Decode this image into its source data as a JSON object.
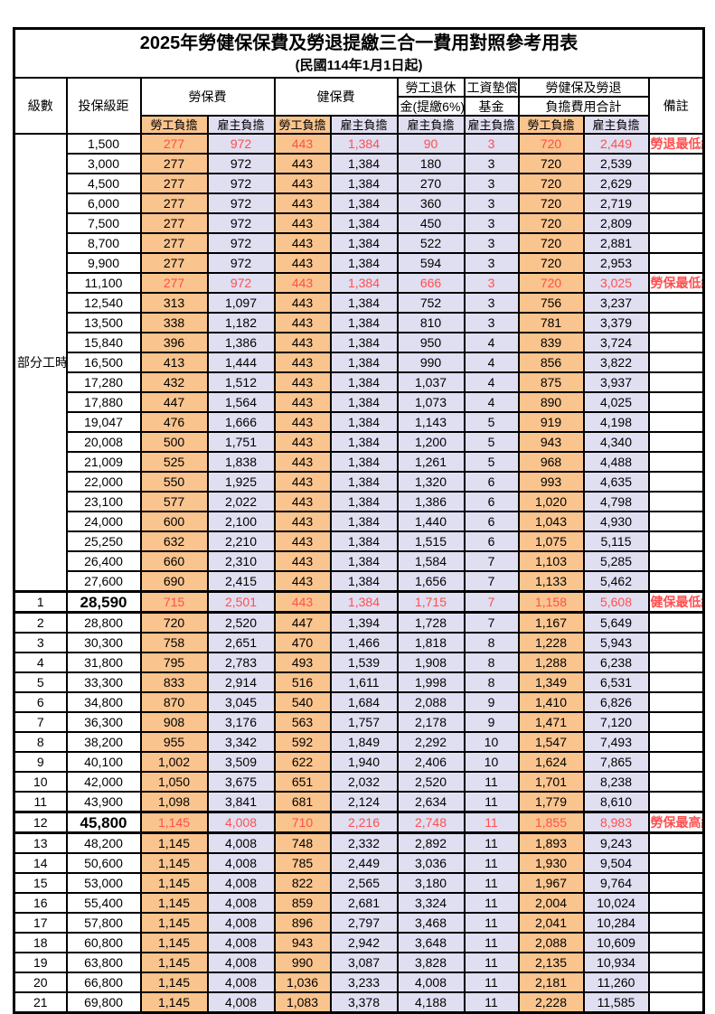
{
  "title": "2025年勞健保保費及勞退提繳三合一費用對照參考用表",
  "subtitle": "(民國114年1月1日起)",
  "header": {
    "level": "級數",
    "bracket": "投保級距",
    "labor_insurance": "勞保費",
    "health_insurance": "健保費",
    "pension_line1": "勞工退休",
    "pension_line2": "金(提繳6%)",
    "wage_fund_line1": "工資墊償",
    "wage_fund_line2": "基金",
    "total_line1": "勞健保及勞退",
    "total_line2": "負擔費用合計",
    "remark": "備註",
    "worker_share": "勞工負擔",
    "employer_share": "雇主負擔"
  },
  "part_time_label": "部分工時",
  "colors": {
    "worker_bg": "#F9C48E",
    "employer_bg": "#E0DEF1",
    "highlight_text": "#FF4F4F"
  },
  "rows": [
    {
      "level": "",
      "bracket": "1,500",
      "values": [
        "277",
        "972",
        "443",
        "1,384",
        "90",
        "3",
        "720",
        "2,449"
      ],
      "remark": "勞退最低級距",
      "highlight": true,
      "big_bracket": false
    },
    {
      "level": "",
      "bracket": "3,000",
      "values": [
        "277",
        "972",
        "443",
        "1,384",
        "180",
        "3",
        "720",
        "2,539"
      ],
      "remark": "",
      "highlight": false,
      "big_bracket": false
    },
    {
      "level": "",
      "bracket": "4,500",
      "values": [
        "277",
        "972",
        "443",
        "1,384",
        "270",
        "3",
        "720",
        "2,629"
      ],
      "remark": "",
      "highlight": false,
      "big_bracket": false
    },
    {
      "level": "",
      "bracket": "6,000",
      "values": [
        "277",
        "972",
        "443",
        "1,384",
        "360",
        "3",
        "720",
        "2,719"
      ],
      "remark": "",
      "highlight": false,
      "big_bracket": false
    },
    {
      "level": "",
      "bracket": "7,500",
      "values": [
        "277",
        "972",
        "443",
        "1,384",
        "450",
        "3",
        "720",
        "2,809"
      ],
      "remark": "",
      "highlight": false,
      "big_bracket": false
    },
    {
      "level": "",
      "bracket": "8,700",
      "values": [
        "277",
        "972",
        "443",
        "1,384",
        "522",
        "3",
        "720",
        "2,881"
      ],
      "remark": "",
      "highlight": false,
      "big_bracket": false
    },
    {
      "level": "",
      "bracket": "9,900",
      "values": [
        "277",
        "972",
        "443",
        "1,384",
        "594",
        "3",
        "720",
        "2,953"
      ],
      "remark": "",
      "highlight": false,
      "big_bracket": false
    },
    {
      "level": "",
      "bracket": "11,100",
      "values": [
        "277",
        "972",
        "443",
        "1,384",
        "666",
        "3",
        "720",
        "3,025"
      ],
      "remark": "勞保最低級距",
      "highlight": true,
      "big_bracket": false
    },
    {
      "level": "",
      "bracket": "12,540",
      "values": [
        "313",
        "1,097",
        "443",
        "1,384",
        "752",
        "3",
        "756",
        "3,237"
      ],
      "remark": "",
      "highlight": false,
      "big_bracket": false
    },
    {
      "level": "",
      "bracket": "13,500",
      "values": [
        "338",
        "1,182",
        "443",
        "1,384",
        "810",
        "3",
        "781",
        "3,379"
      ],
      "remark": "",
      "highlight": false,
      "big_bracket": false
    },
    {
      "level": "",
      "bracket": "15,840",
      "values": [
        "396",
        "1,386",
        "443",
        "1,384",
        "950",
        "4",
        "839",
        "3,724"
      ],
      "remark": "",
      "highlight": false,
      "big_bracket": false
    },
    {
      "level": "",
      "bracket": "16,500",
      "values": [
        "413",
        "1,444",
        "443",
        "1,384",
        "990",
        "4",
        "856",
        "3,822"
      ],
      "remark": "",
      "highlight": false,
      "big_bracket": false
    },
    {
      "level": "",
      "bracket": "17,280",
      "values": [
        "432",
        "1,512",
        "443",
        "1,384",
        "1,037",
        "4",
        "875",
        "3,937"
      ],
      "remark": "",
      "highlight": false,
      "big_bracket": false
    },
    {
      "level": "",
      "bracket": "17,880",
      "values": [
        "447",
        "1,564",
        "443",
        "1,384",
        "1,073",
        "4",
        "890",
        "4,025"
      ],
      "remark": "",
      "highlight": false,
      "big_bracket": false
    },
    {
      "level": "",
      "bracket": "19,047",
      "values": [
        "476",
        "1,666",
        "443",
        "1,384",
        "1,143",
        "5",
        "919",
        "4,198"
      ],
      "remark": "",
      "highlight": false,
      "big_bracket": false
    },
    {
      "level": "",
      "bracket": "20,008",
      "values": [
        "500",
        "1,751",
        "443",
        "1,384",
        "1,200",
        "5",
        "943",
        "4,340"
      ],
      "remark": "",
      "highlight": false,
      "big_bracket": false
    },
    {
      "level": "",
      "bracket": "21,009",
      "values": [
        "525",
        "1,838",
        "443",
        "1,384",
        "1,261",
        "5",
        "968",
        "4,488"
      ],
      "remark": "",
      "highlight": false,
      "big_bracket": false
    },
    {
      "level": "",
      "bracket": "22,000",
      "values": [
        "550",
        "1,925",
        "443",
        "1,384",
        "1,320",
        "6",
        "993",
        "4,635"
      ],
      "remark": "",
      "highlight": false,
      "big_bracket": false
    },
    {
      "level": "",
      "bracket": "23,100",
      "values": [
        "577",
        "2,022",
        "443",
        "1,384",
        "1,386",
        "6",
        "1,020",
        "4,798"
      ],
      "remark": "",
      "highlight": false,
      "big_bracket": false
    },
    {
      "level": "",
      "bracket": "24,000",
      "values": [
        "600",
        "2,100",
        "443",
        "1,384",
        "1,440",
        "6",
        "1,043",
        "4,930"
      ],
      "remark": "",
      "highlight": false,
      "big_bracket": false
    },
    {
      "level": "",
      "bracket": "25,250",
      "values": [
        "632",
        "2,210",
        "443",
        "1,384",
        "1,515",
        "6",
        "1,075",
        "5,115"
      ],
      "remark": "",
      "highlight": false,
      "big_bracket": false
    },
    {
      "level": "",
      "bracket": "26,400",
      "values": [
        "660",
        "2,310",
        "443",
        "1,384",
        "1,584",
        "7",
        "1,103",
        "5,285"
      ],
      "remark": "",
      "highlight": false,
      "big_bracket": false
    },
    {
      "level": "",
      "bracket": "27,600",
      "values": [
        "690",
        "2,415",
        "443",
        "1,384",
        "1,656",
        "7",
        "1,133",
        "5,462"
      ],
      "remark": "",
      "highlight": false,
      "big_bracket": false
    },
    {
      "level": "1",
      "bracket": "28,590",
      "values": [
        "715",
        "2,501",
        "443",
        "1,384",
        "1,715",
        "7",
        "1,158",
        "5,608"
      ],
      "remark": "健保最低級距",
      "highlight": true,
      "big_bracket": true
    },
    {
      "level": "2",
      "bracket": "28,800",
      "values": [
        "720",
        "2,520",
        "447",
        "1,394",
        "1,728",
        "7",
        "1,167",
        "5,649"
      ],
      "remark": "",
      "highlight": false,
      "big_bracket": false
    },
    {
      "level": "3",
      "bracket": "30,300",
      "values": [
        "758",
        "2,651",
        "470",
        "1,466",
        "1,818",
        "8",
        "1,228",
        "5,943"
      ],
      "remark": "",
      "highlight": false,
      "big_bracket": false
    },
    {
      "level": "4",
      "bracket": "31,800",
      "values": [
        "795",
        "2,783",
        "493",
        "1,539",
        "1,908",
        "8",
        "1,288",
        "6,238"
      ],
      "remark": "",
      "highlight": false,
      "big_bracket": false
    },
    {
      "level": "5",
      "bracket": "33,300",
      "values": [
        "833",
        "2,914",
        "516",
        "1,611",
        "1,998",
        "8",
        "1,349",
        "6,531"
      ],
      "remark": "",
      "highlight": false,
      "big_bracket": false
    },
    {
      "level": "6",
      "bracket": "34,800",
      "values": [
        "870",
        "3,045",
        "540",
        "1,684",
        "2,088",
        "9",
        "1,410",
        "6,826"
      ],
      "remark": "",
      "highlight": false,
      "big_bracket": false
    },
    {
      "level": "7",
      "bracket": "36,300",
      "values": [
        "908",
        "3,176",
        "563",
        "1,757",
        "2,178",
        "9",
        "1,471",
        "7,120"
      ],
      "remark": "",
      "highlight": false,
      "big_bracket": false
    },
    {
      "level": "8",
      "bracket": "38,200",
      "values": [
        "955",
        "3,342",
        "592",
        "1,849",
        "2,292",
        "10",
        "1,547",
        "7,493"
      ],
      "remark": "",
      "highlight": false,
      "big_bracket": false
    },
    {
      "level": "9",
      "bracket": "40,100",
      "values": [
        "1,002",
        "3,509",
        "622",
        "1,940",
        "2,406",
        "10",
        "1,624",
        "7,865"
      ],
      "remark": "",
      "highlight": false,
      "big_bracket": false
    },
    {
      "level": "10",
      "bracket": "42,000",
      "values": [
        "1,050",
        "3,675",
        "651",
        "2,032",
        "2,520",
        "11",
        "1,701",
        "8,238"
      ],
      "remark": "",
      "highlight": false,
      "big_bracket": false
    },
    {
      "level": "11",
      "bracket": "43,900",
      "values": [
        "1,098",
        "3,841",
        "681",
        "2,124",
        "2,634",
        "11",
        "1,779",
        "8,610"
      ],
      "remark": "",
      "highlight": false,
      "big_bracket": false
    },
    {
      "level": "12",
      "bracket": "45,800",
      "values": [
        "1,145",
        "4,008",
        "710",
        "2,216",
        "2,748",
        "11",
        "1,855",
        "8,983"
      ],
      "remark": "勞保最高級距",
      "highlight": true,
      "big_bracket": true
    },
    {
      "level": "13",
      "bracket": "48,200",
      "values": [
        "1,145",
        "4,008",
        "748",
        "2,332",
        "2,892",
        "11",
        "1,893",
        "9,243"
      ],
      "remark": "",
      "highlight": false,
      "big_bracket": false
    },
    {
      "level": "14",
      "bracket": "50,600",
      "values": [
        "1,145",
        "4,008",
        "785",
        "2,449",
        "3,036",
        "11",
        "1,930",
        "9,504"
      ],
      "remark": "",
      "highlight": false,
      "big_bracket": false
    },
    {
      "level": "15",
      "bracket": "53,000",
      "values": [
        "1,145",
        "4,008",
        "822",
        "2,565",
        "3,180",
        "11",
        "1,967",
        "9,764"
      ],
      "remark": "",
      "highlight": false,
      "big_bracket": false
    },
    {
      "level": "16",
      "bracket": "55,400",
      "values": [
        "1,145",
        "4,008",
        "859",
        "2,681",
        "3,324",
        "11",
        "2,004",
        "10,024"
      ],
      "remark": "",
      "highlight": false,
      "big_bracket": false
    },
    {
      "level": "17",
      "bracket": "57,800",
      "values": [
        "1,145",
        "4,008",
        "896",
        "2,797",
        "3,468",
        "11",
        "2,041",
        "10,284"
      ],
      "remark": "",
      "highlight": false,
      "big_bracket": false
    },
    {
      "level": "18",
      "bracket": "60,800",
      "values": [
        "1,145",
        "4,008",
        "943",
        "2,942",
        "3,648",
        "11",
        "2,088",
        "10,609"
      ],
      "remark": "",
      "highlight": false,
      "big_bracket": false
    },
    {
      "level": "19",
      "bracket": "63,800",
      "values": [
        "1,145",
        "4,008",
        "990",
        "3,087",
        "3,828",
        "11",
        "2,135",
        "10,934"
      ],
      "remark": "",
      "highlight": false,
      "big_bracket": false
    },
    {
      "level": "20",
      "bracket": "66,800",
      "values": [
        "1,145",
        "4,008",
        "1,036",
        "3,233",
        "4,008",
        "11",
        "2,181",
        "11,260"
      ],
      "remark": "",
      "highlight": false,
      "big_bracket": false
    },
    {
      "level": "21",
      "bracket": "69,800",
      "values": [
        "1,145",
        "4,008",
        "1,083",
        "3,378",
        "4,188",
        "11",
        "2,228",
        "11,585"
      ],
      "remark": "",
      "highlight": false,
      "big_bracket": false
    }
  ],
  "part_time_row_span": 23,
  "value_column_styles": [
    "w-bg",
    "e-bg",
    "w-bg",
    "e-bg",
    "e-bg",
    "e-bg",
    "w-bg",
    "e-bg"
  ]
}
